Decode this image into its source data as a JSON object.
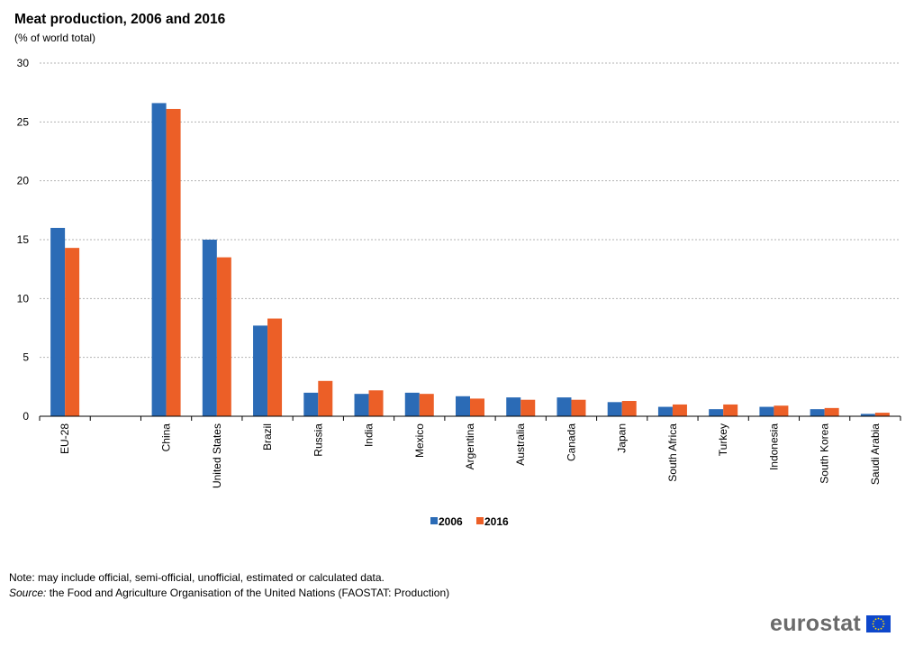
{
  "header": {
    "title": "Meat production, 2006 and 2016",
    "subtitle": "(% of world total)"
  },
  "footer": {
    "note": "Note: may include official, semi-official, unofficial, estimated or calculated data.",
    "source_label": "Source:",
    "source_text": " the Food and Agriculture Organisation of the United Nations (FAOSTAT: Production)",
    "logo_text": "eurostat"
  },
  "colors": {
    "series_2006": "#2b6bb6",
    "series_2016": "#ec5f27",
    "grid": "#b3b3b3",
    "eu_flag": "#0e47cb",
    "eu_stars": "#ffdd00"
  },
  "chart_data": {
    "type": "bar",
    "title": "Meat production, 2006 and 2016",
    "subtitle": "(% of world total)",
    "categories": [
      "EU-28",
      "",
      "China",
      "United States",
      "Brazil",
      "Russia",
      "India",
      "Mexico",
      "Argentina",
      "Australia",
      "Canada",
      "Japan",
      "South Africa",
      "Turkey",
      "Indonesia",
      "South Korea",
      "Saudi Arabia"
    ],
    "series": [
      {
        "name": "2006",
        "color": "#2b6bb6",
        "values": [
          16.0,
          null,
          26.6,
          15.0,
          7.7,
          2.0,
          1.9,
          2.0,
          1.7,
          1.6,
          1.6,
          1.2,
          0.8,
          0.6,
          0.8,
          0.6,
          0.2
        ]
      },
      {
        "name": "2016",
        "color": "#ec5f27",
        "values": [
          14.3,
          null,
          26.1,
          13.5,
          8.3,
          3.0,
          2.2,
          1.9,
          1.5,
          1.4,
          1.4,
          1.3,
          1.0,
          1.0,
          0.9,
          0.7,
          0.3
        ]
      }
    ],
    "ylim": [
      0,
      30
    ],
    "yticks": [
      0,
      5,
      10,
      15,
      20,
      25,
      30
    ],
    "grid": true,
    "legend_position": "bottom-center"
  }
}
